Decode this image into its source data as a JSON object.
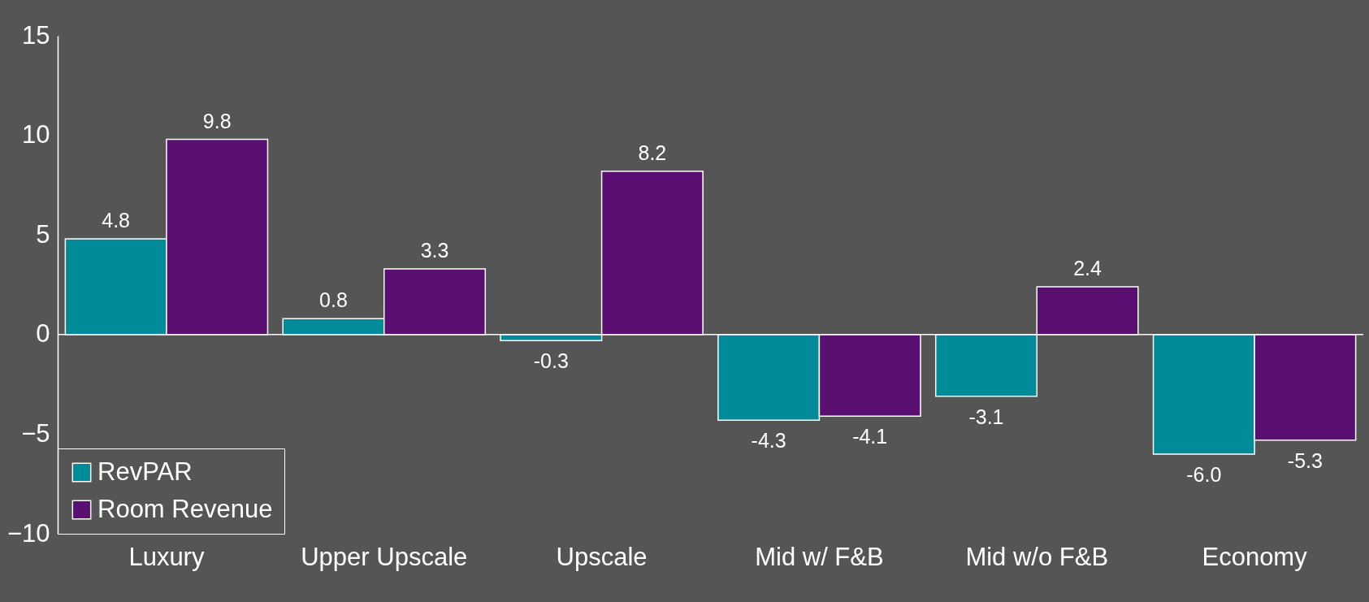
{
  "chart_data": {
    "type": "bar",
    "categories": [
      "Luxury",
      "Upper Upscale",
      "Upscale",
      "Mid w/ F&B",
      "Mid w/o F&B",
      "Economy"
    ],
    "series": [
      {
        "name": "RevPAR",
        "color": "#008b99",
        "values": [
          4.8,
          0.8,
          -0.3,
          -4.3,
          -3.1,
          -6.0
        ],
        "value_labels": [
          "4.8",
          "0.8",
          "-0.3",
          "-4.3",
          "-3.1",
          "-6.0"
        ]
      },
      {
        "name": "Room Revenue",
        "color": "#5a1072",
        "values": [
          9.8,
          3.3,
          8.2,
          -4.1,
          2.4,
          -5.3
        ],
        "value_labels": [
          "9.8",
          "3.3",
          "8.2",
          "-4.1",
          "2.4",
          "-5.3"
        ]
      }
    ],
    "ylim": [
      -10,
      15
    ],
    "yticks": [
      -10,
      -5,
      0,
      5,
      10,
      15
    ],
    "legend": "bottom left"
  }
}
